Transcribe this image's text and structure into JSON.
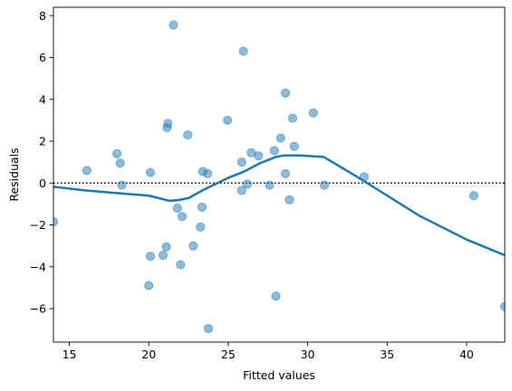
{
  "chart_data": {
    "type": "scatter",
    "title": "",
    "xlabel": "Fitted values",
    "ylabel": "Residuals",
    "xlim": [
      14.0,
      42.4
    ],
    "ylim": [
      -7.6,
      8.4
    ],
    "xticks": [
      15,
      20,
      25,
      30,
      35,
      40
    ],
    "yticks": [
      -6,
      -4,
      -2,
      0,
      2,
      4,
      6,
      8
    ],
    "grid": false,
    "legend": "none",
    "colors": {
      "points": "#1f77b4",
      "points_opacity": 0.5,
      "smooth_line": "#1f77b4",
      "reference_line": "#000000"
    },
    "series": [
      {
        "type": "scatter",
        "points": [
          [
            14.0,
            -1.85
          ],
          [
            16.1,
            0.6
          ],
          [
            18.0,
            1.4
          ],
          [
            18.2,
            0.95
          ],
          [
            18.3,
            -0.1
          ],
          [
            20.0,
            -4.9
          ],
          [
            20.1,
            -3.5
          ],
          [
            20.1,
            0.5
          ],
          [
            20.9,
            -3.45
          ],
          [
            21.1,
            -3.05
          ],
          [
            21.15,
            2.65
          ],
          [
            21.2,
            2.85
          ],
          [
            21.55,
            7.55
          ],
          [
            21.8,
            -1.2
          ],
          [
            22.0,
            -3.9
          ],
          [
            22.1,
            -1.6
          ],
          [
            22.45,
            2.3
          ],
          [
            22.8,
            -3.0
          ],
          [
            23.25,
            -2.1
          ],
          [
            23.35,
            -1.15
          ],
          [
            23.4,
            0.55
          ],
          [
            23.75,
            -6.95
          ],
          [
            23.7,
            0.45
          ],
          [
            24.95,
            3.0
          ],
          [
            25.85,
            1.0
          ],
          [
            25.85,
            -0.35
          ],
          [
            25.95,
            6.3
          ],
          [
            26.2,
            -0.05
          ],
          [
            26.45,
            1.45
          ],
          [
            26.9,
            1.3
          ],
          [
            27.6,
            -0.1
          ],
          [
            27.9,
            1.55
          ],
          [
            28.0,
            -5.4
          ],
          [
            28.3,
            2.15
          ],
          [
            28.6,
            4.3
          ],
          [
            28.6,
            0.45
          ],
          [
            28.85,
            -0.8
          ],
          [
            29.05,
            3.1
          ],
          [
            29.15,
            1.75
          ],
          [
            30.35,
            3.35
          ],
          [
            31.05,
            -0.1
          ],
          [
            33.55,
            0.3
          ],
          [
            40.45,
            -0.6
          ],
          [
            42.4,
            -5.9
          ]
        ]
      },
      {
        "type": "line",
        "points": [
          [
            14.0,
            -0.18
          ],
          [
            16.0,
            -0.35
          ],
          [
            18.0,
            -0.48
          ],
          [
            20.0,
            -0.6
          ],
          [
            21.3,
            -0.85
          ],
          [
            21.8,
            -0.82
          ],
          [
            22.5,
            -0.72
          ],
          [
            23.5,
            -0.3
          ],
          [
            25.0,
            0.25
          ],
          [
            26.0,
            0.55
          ],
          [
            27.0,
            0.95
          ],
          [
            28.0,
            1.25
          ],
          [
            28.5,
            1.32
          ],
          [
            29.5,
            1.32
          ],
          [
            31.0,
            1.25
          ],
          [
            32.0,
            0.8
          ],
          [
            33.0,
            0.35
          ],
          [
            34.0,
            -0.12
          ],
          [
            35.0,
            -0.6
          ],
          [
            37.0,
            -1.55
          ],
          [
            40.0,
            -2.7
          ],
          [
            42.4,
            -3.45
          ]
        ]
      },
      {
        "type": "hline",
        "y": 0
      }
    ]
  }
}
